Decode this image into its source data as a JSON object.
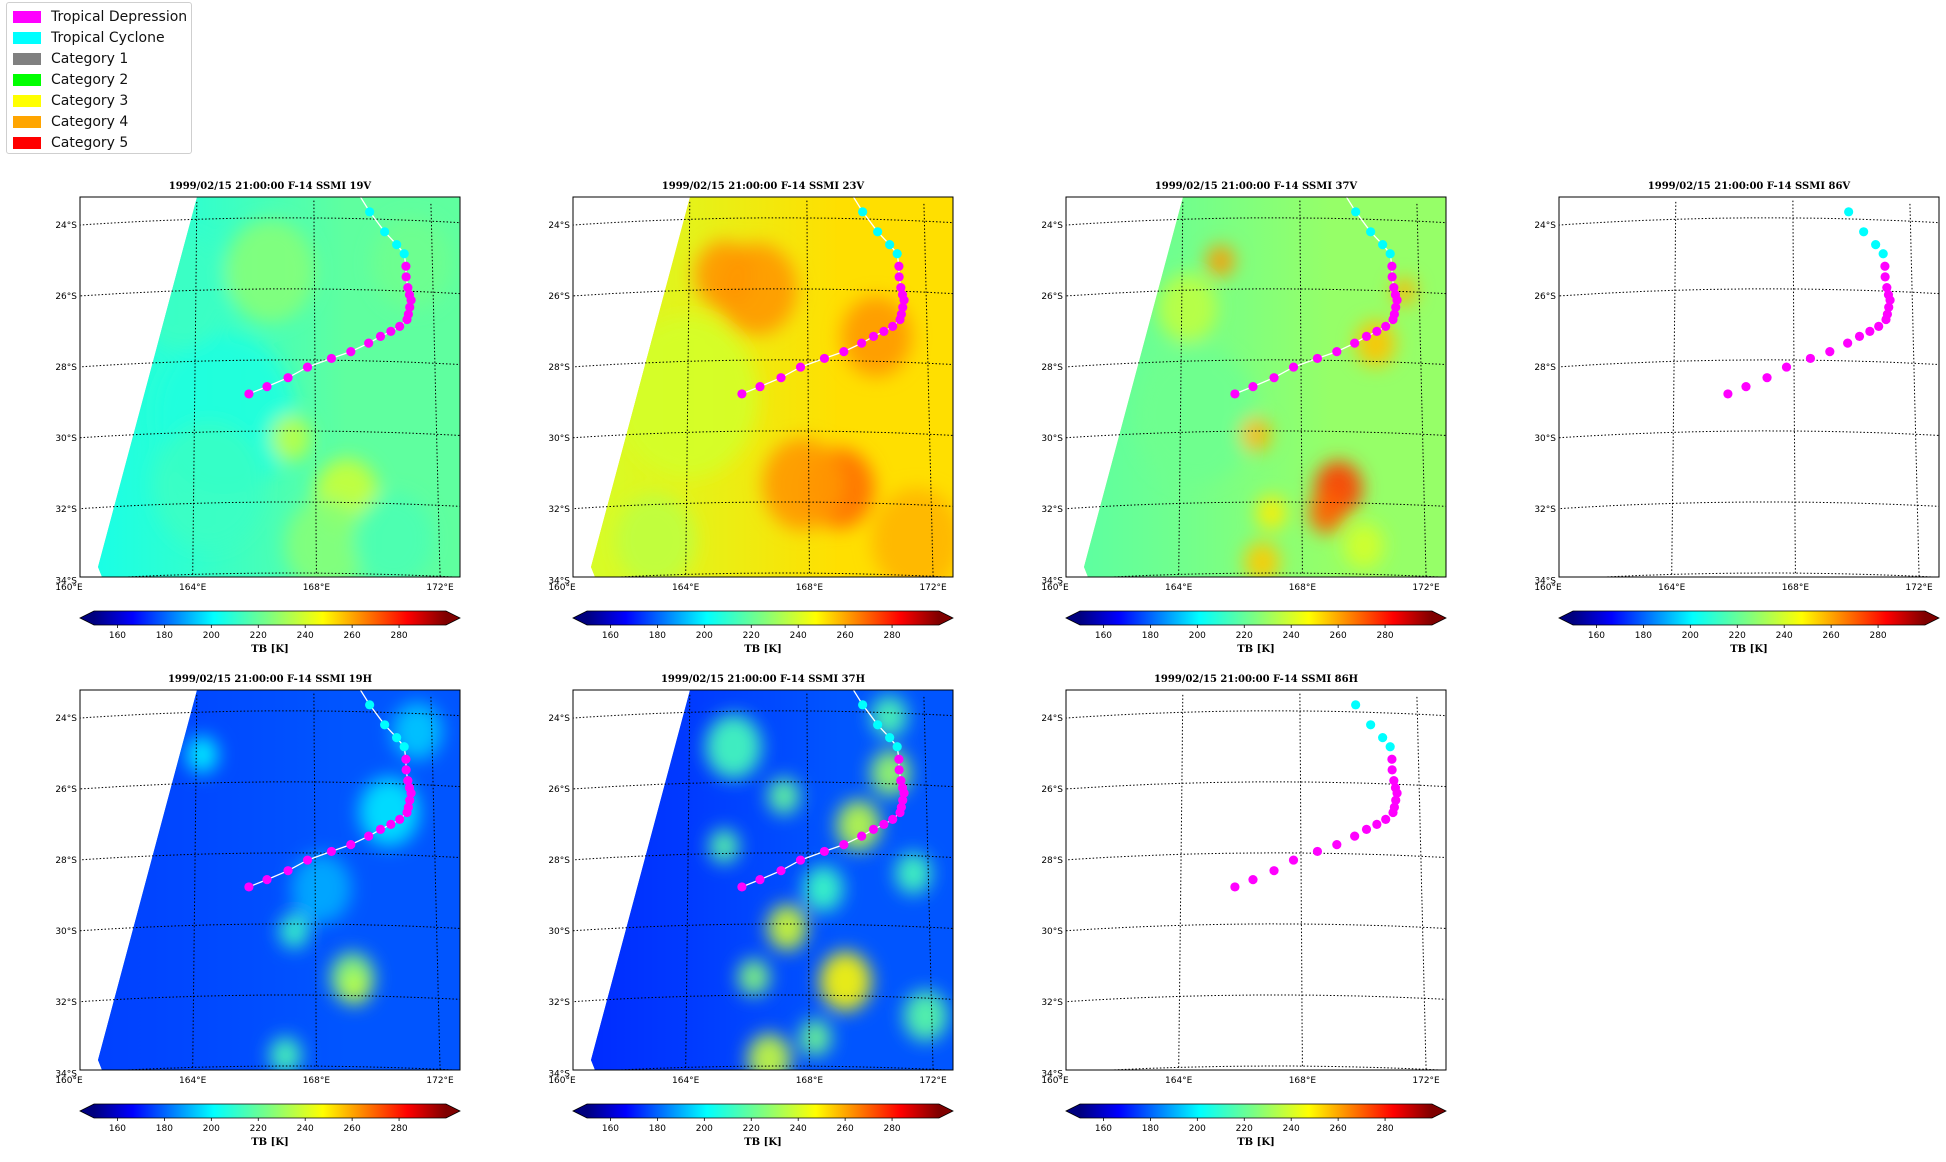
{
  "legend": {
    "items": [
      {
        "label": "Tropical Depression",
        "color": "#ff00ff"
      },
      {
        "label": "Tropical Cyclone",
        "color": "#00ffff"
      },
      {
        "label": "Category 1",
        "color": "#808080"
      },
      {
        "label": "Category 2",
        "color": "#00ff00"
      },
      {
        "label": "Category 3",
        "color": "#ffff00"
      },
      {
        "label": "Category 4",
        "color": "#ffa500"
      },
      {
        "label": "Category 5",
        "color": "#ff0000"
      }
    ]
  },
  "axes": {
    "lon_ticks": [
      "160°E",
      "164°E",
      "168°E",
      "172°E"
    ],
    "lat_ticks": [
      "24°S",
      "26°S",
      "28°S",
      "30°S",
      "32°S",
      "34°S"
    ],
    "lon_values": [
      160,
      164,
      168,
      172
    ],
    "lat_values": [
      -24,
      -26,
      -28,
      -30,
      -32,
      -34
    ],
    "lon_range": [
      160,
      173
    ],
    "lat_range": [
      -34,
      -23.3
    ]
  },
  "colorbar": {
    "label": "TB [K]",
    "ticks": [
      "160",
      "180",
      "200",
      "220",
      "240",
      "260",
      "280"
    ],
    "range": [
      150,
      300
    ],
    "colormap": "jet"
  },
  "chart_data": [
    {
      "type": "heatmap",
      "title": "1999/02/15 21:00:00  F-14 SSMI 19V",
      "channel": "19V",
      "field": "mid",
      "has_field": true,
      "track_line": true
    },
    {
      "type": "heatmap",
      "title": "1999/02/15 21:00:00  F-14 SSMI 23V",
      "channel": "23V",
      "field": "warm",
      "has_field": true,
      "track_line": true
    },
    {
      "type": "heatmap",
      "title": "1999/02/15 21:00:00  F-14 SSMI 37V",
      "channel": "37V",
      "field": "midwarm",
      "has_field": true,
      "track_line": true
    },
    {
      "type": "heatmap",
      "title": "1999/02/15 21:00:00  F-14 SSMI 86V",
      "channel": "86V",
      "field": "none",
      "has_field": false,
      "track_line": false
    },
    {
      "type": "heatmap",
      "title": "1999/02/15 21:00:00  F-14 SSMI 19H",
      "channel": "19H",
      "field": "cold",
      "has_field": true,
      "track_line": true
    },
    {
      "type": "heatmap",
      "title": "1999/02/15 21:00:00  F-14 SSMI 37H",
      "channel": "37H",
      "field": "coldvar",
      "has_field": true,
      "track_line": true
    },
    {
      "type": "heatmap",
      "title": "1999/02/15 21:00:00  F-14 SSMI 86H",
      "channel": "86H",
      "field": "none",
      "has_field": false,
      "track_line": false
    }
  ],
  "track": [
    {
      "lon": 169.9,
      "lat": -23.8,
      "category": "Tropical Cyclone"
    },
    {
      "lon": 170.4,
      "lat": -24.35,
      "category": "Tropical Cyclone"
    },
    {
      "lon": 170.8,
      "lat": -24.7,
      "category": "Tropical Cyclone"
    },
    {
      "lon": 171.05,
      "lat": -24.95,
      "category": "Tropical Cyclone"
    },
    {
      "lon": 171.1,
      "lat": -25.3,
      "category": "Tropical Depression"
    },
    {
      "lon": 171.1,
      "lat": -25.6,
      "category": "Tropical Depression"
    },
    {
      "lon": 171.15,
      "lat": -25.9,
      "category": "Tropical Depression"
    },
    {
      "lon": 171.2,
      "lat": -26.1,
      "category": "Tropical Depression"
    },
    {
      "lon": 171.25,
      "lat": -26.25,
      "category": "Tropical Depression"
    },
    {
      "lon": 171.2,
      "lat": -26.45,
      "category": "Tropical Depression"
    },
    {
      "lon": 171.15,
      "lat": -26.65,
      "category": "Tropical Depression"
    },
    {
      "lon": 171.1,
      "lat": -26.8,
      "category": "Tropical Depression"
    },
    {
      "lon": 170.85,
      "lat": -27.0,
      "category": "Tropical Depression"
    },
    {
      "lon": 170.55,
      "lat": -27.15,
      "category": "Tropical Depression"
    },
    {
      "lon": 170.2,
      "lat": -27.3,
      "category": "Tropical Depression"
    },
    {
      "lon": 169.8,
      "lat": -27.5,
      "category": "Tropical Depression"
    },
    {
      "lon": 169.2,
      "lat": -27.75,
      "category": "Tropical Depression"
    },
    {
      "lon": 168.55,
      "lat": -27.95,
      "category": "Tropical Depression"
    },
    {
      "lon": 167.75,
      "lat": -28.2,
      "category": "Tropical Depression"
    },
    {
      "lon": 167.1,
      "lat": -28.5,
      "category": "Tropical Depression"
    },
    {
      "lon": 166.4,
      "lat": -28.75,
      "category": "Tropical Depression"
    },
    {
      "lon": 165.8,
      "lat": -28.95,
      "category": "Tropical Depression"
    }
  ]
}
